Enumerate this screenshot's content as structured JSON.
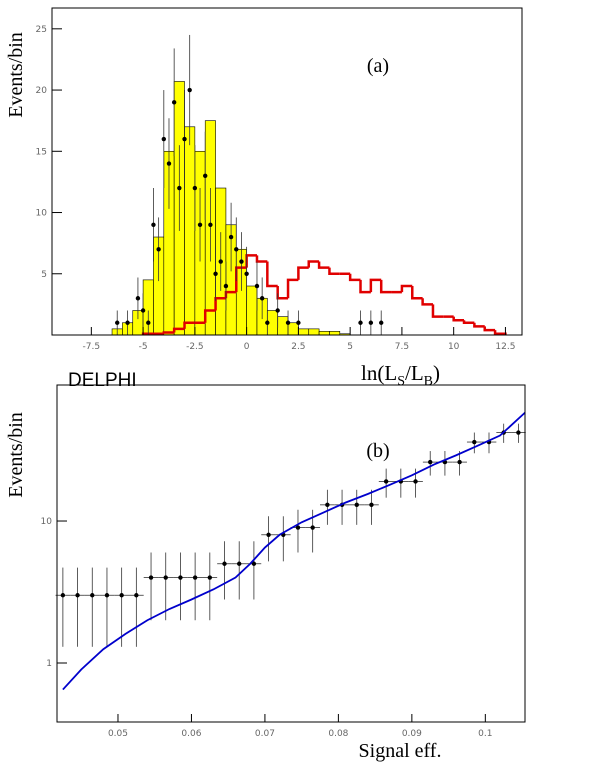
{
  "chart_data": [
    {
      "type": "histogram",
      "ylabel": "Events/bin",
      "annotation": "(a)",
      "xlabel_parts": [
        "ln(L",
        "S",
        "/L",
        "B",
        ")"
      ],
      "xlim": [
        -9.4,
        13.3
      ],
      "ylim": [
        0,
        26.7
      ],
      "xticks": [
        -7.5,
        -5,
        -2.5,
        0,
        2.5,
        5,
        7.5,
        10,
        12.5
      ],
      "yticks": [
        5,
        10,
        15,
        20,
        25
      ],
      "series": [
        {
          "style": "filled",
          "color": "#ffff00",
          "bins": [
            -6.5,
            -6,
            -5.5,
            -5,
            -4.5,
            -4,
            -3.5,
            -3,
            -2.5,
            -2,
            -1.5,
            -1,
            -0.5,
            0,
            0.5,
            1,
            1.5,
            2,
            2.5,
            3,
            3.5,
            4,
            4.5,
            5
          ],
          "values": [
            0.5,
            1,
            2,
            4.5,
            8,
            15,
            20.7,
            17,
            15,
            17.5,
            12,
            9,
            7,
            4,
            3,
            2,
            1.5,
            1,
            0.5,
            0.5,
            0.3,
            0.3,
            0.1
          ]
        },
        {
          "style": "step",
          "color": "#e00000",
          "bins": [
            -5,
            -4.5,
            -4,
            -3.5,
            -3,
            -2.5,
            -2,
            -1.5,
            -1,
            -0.5,
            0,
            0.5,
            1,
            1.5,
            2,
            2.5,
            3,
            3.5,
            4,
            4.5,
            5,
            5.5,
            6,
            6.5,
            7,
            7.5,
            8,
            8.5,
            9,
            9.5,
            10,
            10.5,
            11,
            11.5,
            12,
            12.5
          ],
          "values": [
            0.1,
            0.1,
            0.2,
            0.5,
            1,
            1,
            2,
            3,
            3.5,
            5.5,
            6.5,
            6,
            4,
            3,
            4.5,
            5.5,
            6,
            5.5,
            5,
            5,
            4.5,
            3.5,
            4.5,
            3.5,
            3.5,
            4,
            3,
            2.5,
            1.5,
            1.5,
            1.2,
            1,
            0.7,
            0.4,
            0.1
          ]
        },
        {
          "style": "points",
          "color": "#000000",
          "x": [
            -6.25,
            -5.75,
            -5.25,
            -5,
            -4.75,
            -4.5,
            -4.25,
            -4,
            -3.75,
            -3.5,
            -3.25,
            -3,
            -2.75,
            -2.5,
            -2.25,
            -2,
            -1.75,
            -1.5,
            -1.25,
            -1,
            -0.75,
            -0.5,
            -0.25,
            0,
            0.5,
            0.75,
            1,
            1.5,
            2,
            2.5,
            5.5,
            6,
            6.5
          ],
          "values": [
            1,
            1,
            3,
            2,
            1,
            9,
            7,
            16,
            14,
            19,
            12,
            16,
            20,
            12,
            9,
            13,
            9,
            5,
            6,
            4,
            8,
            7,
            6,
            5,
            4,
            3,
            1,
            2,
            1,
            1,
            1,
            1,
            1
          ],
          "errors": [
            1,
            1,
            1.7,
            1.4,
            1,
            3,
            2.6,
            4,
            3.7,
            4.4,
            3.5,
            4,
            4.5,
            3.5,
            3,
            3.6,
            3,
            2.2,
            2.4,
            2,
            2.8,
            2.6,
            2.4,
            2.2,
            2,
            1.7,
            1,
            1.4,
            1,
            1,
            1,
            1,
            1
          ]
        }
      ]
    },
    {
      "type": "line",
      "ylabel": "Events/bin",
      "annotation": "(b)",
      "label": "DELPHI",
      "xlabel": "Signal eff.",
      "log_y": true,
      "xlim": [
        0.0417,
        0.1054
      ],
      "ylim": [
        0.384,
        90.8
      ],
      "xticks": [
        0.05,
        0.06,
        0.07,
        0.08,
        0.09,
        0.1
      ],
      "yticks": [
        1,
        10
      ],
      "series": [
        {
          "style": "points",
          "color": "#000000",
          "x": [
            0.0425,
            0.0445,
            0.0465,
            0.0485,
            0.0505,
            0.0525,
            0.0545,
            0.0565,
            0.0585,
            0.0605,
            0.0625,
            0.0645,
            0.0665,
            0.0685,
            0.0705,
            0.0725,
            0.0745,
            0.0765,
            0.0785,
            0.0805,
            0.0825,
            0.0845,
            0.0865,
            0.0885,
            0.0905,
            0.0925,
            0.0945,
            0.0965,
            0.0985,
            0.1005,
            0.1025,
            0.1045
          ],
          "xerr": [
            0.001,
            0.001,
            0.001,
            0.001,
            0.001,
            0.001,
            0.001,
            0.001,
            0.001,
            0.001,
            0.001,
            0.001,
            0.001,
            0.001,
            0.001,
            0.001,
            0.001,
            0.001,
            0.001,
            0.001,
            0.001,
            0.001,
            0.001,
            0.001,
            0.001,
            0.001,
            0.001,
            0.001,
            0.001,
            0.001,
            0.001,
            0.001
          ],
          "values": [
            3,
            3,
            3,
            3,
            3,
            3,
            4,
            4,
            4,
            4,
            4,
            5,
            5,
            5,
            8,
            8,
            9,
            9,
            13,
            13,
            13,
            13,
            19,
            19,
            19,
            26,
            26,
            26,
            36,
            36,
            42,
            42
          ],
          "errors": [
            1.7,
            1.7,
            1.7,
            1.7,
            1.7,
            1.7,
            2,
            2,
            2,
            2,
            2,
            2.2,
            2.2,
            2.2,
            2.8,
            2.8,
            3,
            3,
            3.6,
            3.6,
            3.6,
            3.6,
            4.4,
            4.4,
            4.4,
            5.1,
            5.1,
            5.1,
            6,
            6,
            6.5,
            6.5
          ]
        },
        {
          "style": "curve",
          "color": "#0000cc",
          "x": [
            0.0425,
            0.045,
            0.048,
            0.051,
            0.054,
            0.057,
            0.06,
            0.063,
            0.066,
            0.068,
            0.07,
            0.072,
            0.075,
            0.078,
            0.081,
            0.084,
            0.087,
            0.09,
            0.093,
            0.096,
            0.099,
            0.102,
            0.1054
          ],
          "values": [
            0.65,
            0.9,
            1.25,
            1.6,
            2,
            2.4,
            2.8,
            3.3,
            4,
            5,
            6.5,
            8,
            9.8,
            11.5,
            13.5,
            15.5,
            18,
            21,
            25,
            29,
            34,
            40,
            58
          ]
        }
      ]
    }
  ]
}
